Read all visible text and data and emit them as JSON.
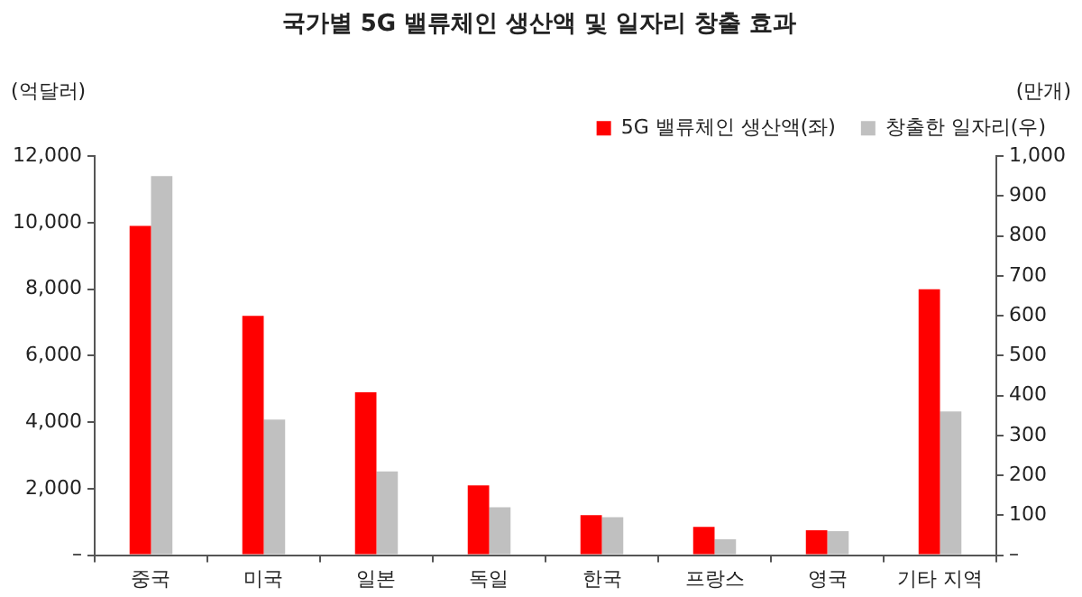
{
  "chart_data": {
    "type": "bar",
    "title": "국가별 5G 밸류체인 생산액 및 일자리 창출 효과",
    "ylabel": "(억달러)",
    "y2label": "(만개)",
    "categories": [
      "중국",
      "미국",
      "일본",
      "독일",
      "한국",
      "프랑스",
      "영국",
      "기타 지역"
    ],
    "series": [
      {
        "name": "5G 밸류체인 생산액(좌)",
        "color": "#ff0000",
        "values": [
          9900,
          7200,
          4900,
          2100,
          1200,
          850,
          750,
          8000
        ]
      },
      {
        "name": "창출한 일자리(우)",
        "color": "#c0c0c0",
        "axis": "y2",
        "values": [
          950,
          340,
          210,
          120,
          95,
          40,
          60,
          360
        ]
      }
    ],
    "ylim": [
      0,
      12000
    ],
    "yticks": [
      {
        "value": 0,
        "label": "–"
      },
      {
        "value": 2000,
        "label": "2,000"
      },
      {
        "value": 4000,
        "label": "4,000"
      },
      {
        "value": 6000,
        "label": "6,000"
      },
      {
        "value": 8000,
        "label": "8,000"
      },
      {
        "value": 10000,
        "label": "10,000"
      },
      {
        "value": 12000,
        "label": "12,000"
      }
    ],
    "y2lim": [
      0,
      1000
    ],
    "y2ticks": [
      {
        "value": 0,
        "label": "–"
      },
      100,
      200,
      300,
      400,
      500,
      600,
      700,
      800,
      900,
      {
        "value": 1000,
        "label": "1,000"
      }
    ],
    "grid": false,
    "legend": "top right"
  }
}
